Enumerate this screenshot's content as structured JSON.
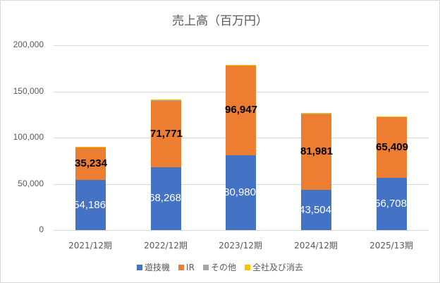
{
  "chart_data": {
    "type": "bar",
    "stacked": true,
    "title": "売上高（百万円）",
    "xlabel": "",
    "ylabel": "",
    "ylim": [
      0,
      200000
    ],
    "yticks": [
      "200,000",
      "150,000",
      "100,000",
      "50,000",
      "0"
    ],
    "grid": true,
    "legend_position": "bottom",
    "categories": [
      "2021/12期",
      "2022/12期",
      "2023/12期",
      "2024/12期",
      "2025/13期"
    ],
    "series": [
      {
        "name": "遊技機",
        "color": "#4472C4",
        "values": [
          54186,
          68268,
          80980,
          43504,
          56708
        ],
        "labels": [
          "54,186",
          "68,268",
          "80,980",
          "43,504",
          "56,708"
        ]
      },
      {
        "name": "IR",
        "color": "#ED7D31",
        "values": [
          35234,
          71771,
          96947,
          81981,
          65409
        ],
        "labels": [
          "35,234",
          "71,771",
          "96,947",
          "81,981",
          "65,409"
        ]
      },
      {
        "name": "その他",
        "color": "#A5A5A5",
        "values": [
          600,
          600,
          600,
          600,
          600
        ]
      },
      {
        "name": "全社及び消去",
        "color": "#FFC000",
        "values": [
          400,
          400,
          400,
          400,
          400
        ]
      }
    ]
  }
}
